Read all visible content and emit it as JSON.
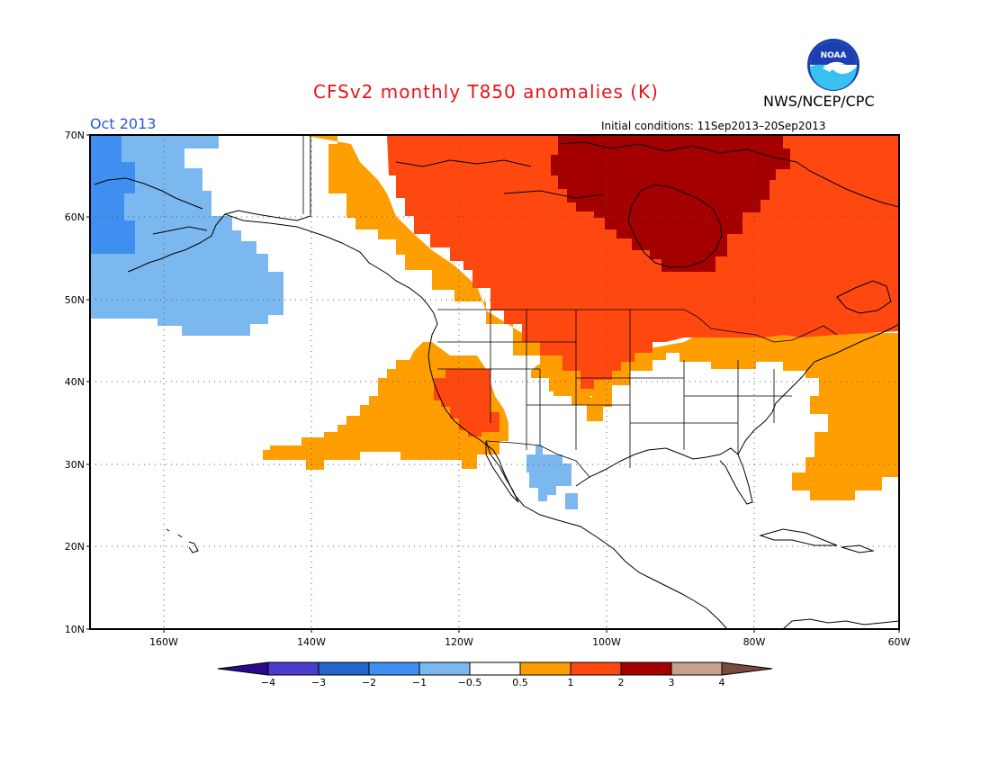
{
  "title": "CFSv2 monthly T850 anomalies (K)",
  "organization": "NWS/NCEP/CPC",
  "logo_text": "NOAA",
  "forecast_month": "Oct 2013",
  "initial_conditions": "Initial conditions: 11Sep2013–20Sep2013",
  "map": {
    "region": "North America",
    "lat_ticks": [
      "70N",
      "60N",
      "50N",
      "40N",
      "30N",
      "20N",
      "10N"
    ],
    "lon_ticks": [
      "160W",
      "140W",
      "120W",
      "100W",
      "80W",
      "60W"
    ],
    "gridlines": "dotted"
  },
  "colorbar": {
    "labels": [
      "−4",
      "−3",
      "−2",
      "−1",
      "−0.5",
      "0.5",
      "1",
      "2",
      "3",
      "4"
    ],
    "colors": [
      "#2a0a8c",
      "#4a3ccc",
      "#2266cc",
      "#3f8ff0",
      "#7cb8f0",
      "#ffffff",
      "#ff9e00",
      "#ff4810",
      "#a50000",
      "#c8a090",
      "#7a4a3c"
    ]
  },
  "anomaly_fill_colors": {
    "cold_1": "#3f8ff0",
    "cold_05": "#7cb8f0",
    "warm_05": "#ff9e00",
    "warm_1": "#ff4810",
    "warm_2": "#a50000"
  }
}
